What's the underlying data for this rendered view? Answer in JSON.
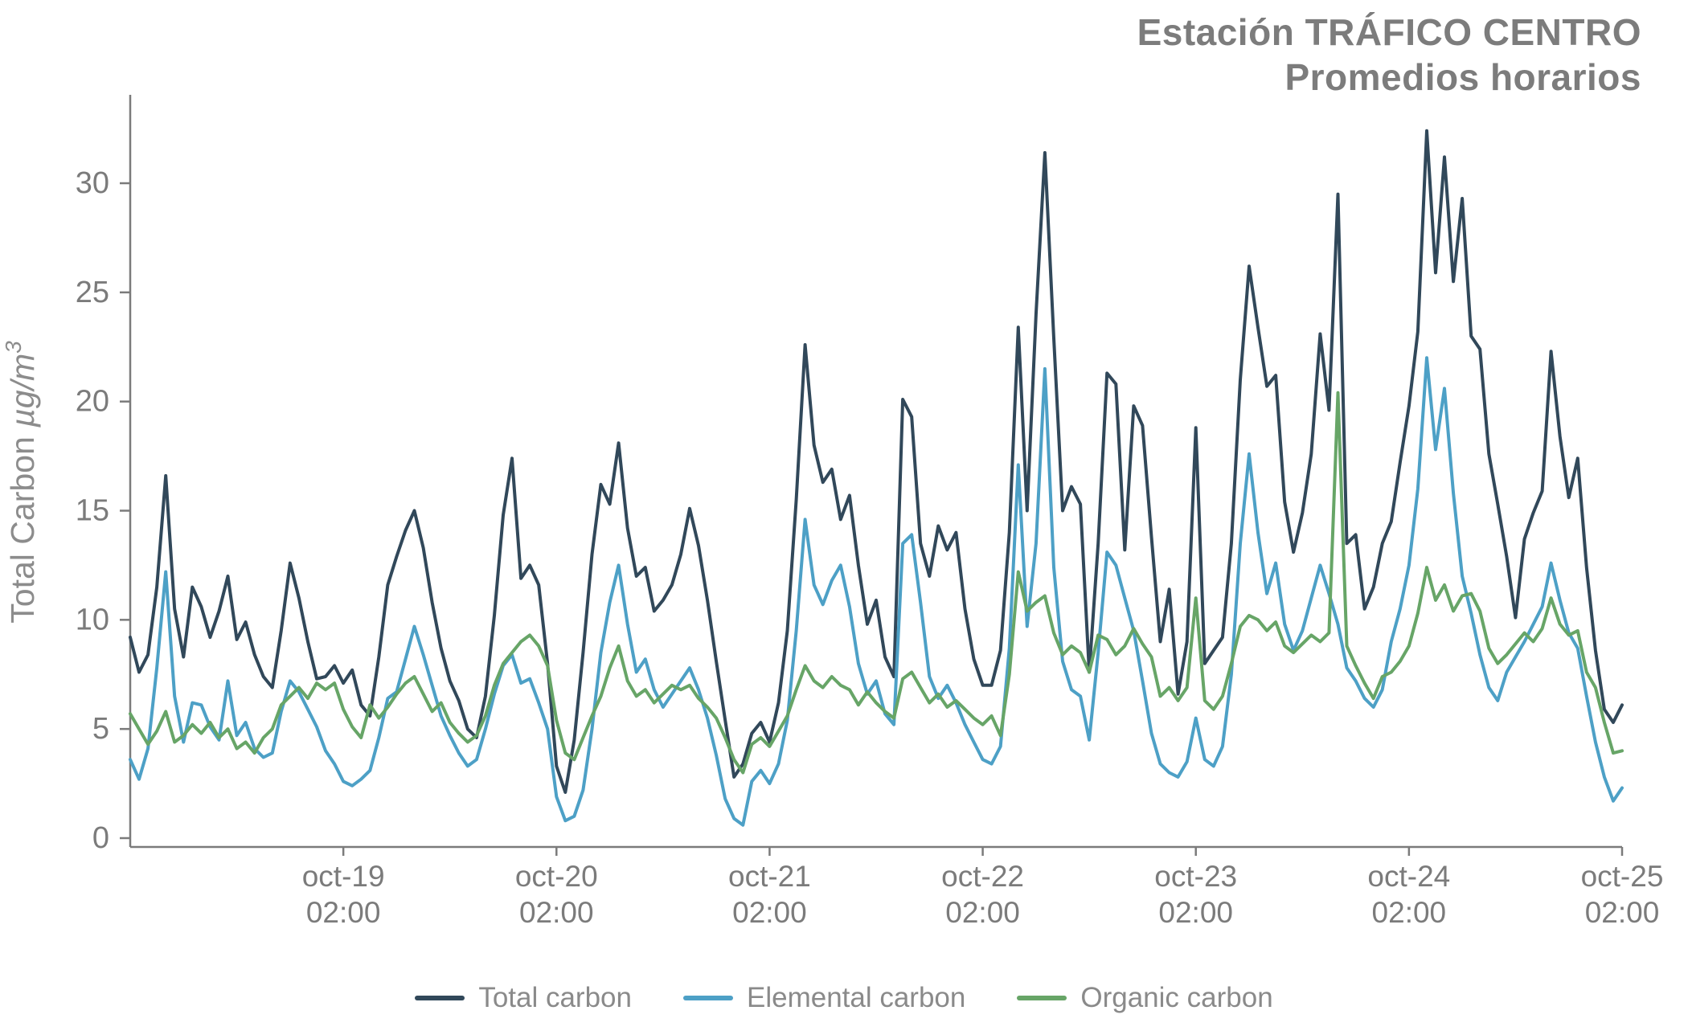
{
  "chart_data": {
    "type": "line",
    "title": "Estación TRÁFICO CENTRO",
    "subtitle": "Promedios horarios",
    "xlabel": "",
    "ylabel_regular": "Total Carbon ",
    "ylabel_italic": "µg/m",
    "ylabel_superscript": "3",
    "ylim": [
      0,
      34
    ],
    "yticks": [
      0,
      5,
      10,
      15,
      20,
      25,
      30
    ],
    "grid": false,
    "legend_position": "bottom-center",
    "axis_color": "#7b7b7b",
    "tick_label_color": "#7b7b7b",
    "title_color": "#7c7c7c",
    "x_tick_labels": [
      {
        "index": 24,
        "date": "oct-19",
        "time": "02:00"
      },
      {
        "index": 48,
        "date": "oct-20",
        "time": "02:00"
      },
      {
        "index": 72,
        "date": "oct-21",
        "time": "02:00"
      },
      {
        "index": 96,
        "date": "oct-22",
        "time": "02:00"
      },
      {
        "index": 120,
        "date": "oct-23",
        "time": "02:00"
      },
      {
        "index": 144,
        "date": "oct-24",
        "time": "02:00"
      },
      {
        "index": 168,
        "date": "oct-25",
        "time": "02:00"
      }
    ],
    "x": [
      "oct-18 02:00",
      "oct-18 03:00",
      "oct-18 04:00",
      "oct-18 05:00",
      "oct-18 06:00",
      "oct-18 07:00",
      "oct-18 08:00",
      "oct-18 09:00",
      "oct-18 10:00",
      "oct-18 11:00",
      "oct-18 12:00",
      "oct-18 13:00",
      "oct-18 14:00",
      "oct-18 15:00",
      "oct-18 16:00",
      "oct-18 17:00",
      "oct-18 18:00",
      "oct-18 19:00",
      "oct-18 20:00",
      "oct-18 21:00",
      "oct-18 22:00",
      "oct-18 23:00",
      "oct-19 00:00",
      "oct-19 01:00",
      "oct-19 02:00",
      "oct-19 03:00",
      "oct-19 04:00",
      "oct-19 05:00",
      "oct-19 06:00",
      "oct-19 07:00",
      "oct-19 08:00",
      "oct-19 09:00",
      "oct-19 10:00",
      "oct-19 11:00",
      "oct-19 12:00",
      "oct-19 13:00",
      "oct-19 14:00",
      "oct-19 15:00",
      "oct-19 16:00",
      "oct-19 17:00",
      "oct-19 18:00",
      "oct-19 19:00",
      "oct-19 20:00",
      "oct-19 21:00",
      "oct-19 22:00",
      "oct-19 23:00",
      "oct-20 00:00",
      "oct-20 01:00",
      "oct-20 02:00",
      "oct-20 03:00",
      "oct-20 04:00",
      "oct-20 05:00",
      "oct-20 06:00",
      "oct-20 07:00",
      "oct-20 08:00",
      "oct-20 09:00",
      "oct-20 10:00",
      "oct-20 11:00",
      "oct-20 12:00",
      "oct-20 13:00",
      "oct-20 14:00",
      "oct-20 15:00",
      "oct-20 16:00",
      "oct-20 17:00",
      "oct-20 18:00",
      "oct-20 19:00",
      "oct-20 20:00",
      "oct-20 21:00",
      "oct-20 22:00",
      "oct-20 23:00",
      "oct-21 00:00",
      "oct-21 01:00",
      "oct-21 02:00",
      "oct-21 03:00",
      "oct-21 04:00",
      "oct-21 05:00",
      "oct-21 06:00",
      "oct-21 07:00",
      "oct-21 08:00",
      "oct-21 09:00",
      "oct-21 10:00",
      "oct-21 11:00",
      "oct-21 12:00",
      "oct-21 13:00",
      "oct-21 14:00",
      "oct-21 15:00",
      "oct-21 16:00",
      "oct-21 17:00",
      "oct-21 18:00",
      "oct-21 19:00",
      "oct-21 20:00",
      "oct-21 21:00",
      "oct-21 22:00",
      "oct-21 23:00",
      "oct-22 00:00",
      "oct-22 01:00",
      "oct-22 02:00",
      "oct-22 03:00",
      "oct-22 04:00",
      "oct-22 05:00",
      "oct-22 06:00",
      "oct-22 07:00",
      "oct-22 08:00",
      "oct-22 09:00",
      "oct-22 10:00",
      "oct-22 11:00",
      "oct-22 12:00",
      "oct-22 13:00",
      "oct-22 14:00",
      "oct-22 15:00",
      "oct-22 16:00",
      "oct-22 17:00",
      "oct-22 18:00",
      "oct-22 19:00",
      "oct-22 20:00",
      "oct-22 21:00",
      "oct-22 22:00",
      "oct-22 23:00",
      "oct-23 00:00",
      "oct-23 01:00",
      "oct-23 02:00",
      "oct-23 03:00",
      "oct-23 04:00",
      "oct-23 05:00",
      "oct-23 06:00",
      "oct-23 07:00",
      "oct-23 08:00",
      "oct-23 09:00",
      "oct-23 10:00",
      "oct-23 11:00",
      "oct-23 12:00",
      "oct-23 13:00",
      "oct-23 14:00",
      "oct-23 15:00",
      "oct-23 16:00",
      "oct-23 17:00",
      "oct-23 18:00",
      "oct-23 19:00",
      "oct-23 20:00",
      "oct-23 21:00",
      "oct-23 22:00",
      "oct-23 23:00",
      "oct-24 00:00",
      "oct-24 01:00",
      "oct-24 02:00",
      "oct-24 03:00",
      "oct-24 04:00",
      "oct-24 05:00",
      "oct-24 06:00",
      "oct-24 07:00",
      "oct-24 08:00",
      "oct-24 09:00",
      "oct-24 10:00",
      "oct-24 11:00",
      "oct-24 12:00",
      "oct-24 13:00",
      "oct-24 14:00",
      "oct-24 15:00",
      "oct-24 16:00",
      "oct-24 17:00",
      "oct-24 18:00",
      "oct-24 19:00",
      "oct-24 20:00",
      "oct-24 21:00",
      "oct-24 22:00",
      "oct-24 23:00",
      "oct-25 00:00",
      "oct-25 01:00",
      "oct-25 02:00"
    ],
    "series": [
      {
        "name": "Total carbon",
        "color": "#31485a",
        "values": [
          9.2,
          7.6,
          8.4,
          11.5,
          16.6,
          10.5,
          8.3,
          11.5,
          10.6,
          9.2,
          10.4,
          12.0,
          9.1,
          9.9,
          8.4,
          7.4,
          6.9,
          9.5,
          12.6,
          11.0,
          9.0,
          7.3,
          7.4,
          7.9,
          7.1,
          7.7,
          6.1,
          5.6,
          8.3,
          11.6,
          12.9,
          14.1,
          15.0,
          13.3,
          10.8,
          8.7,
          7.2,
          6.3,
          5.0,
          4.6,
          6.5,
          10.2,
          14.8,
          17.4,
          11.9,
          12.5,
          11.6,
          8.0,
          3.3,
          2.1,
          4.5,
          8.5,
          13.0,
          16.2,
          15.3,
          18.1,
          14.2,
          12.0,
          12.4,
          10.4,
          10.9,
          11.6,
          13.0,
          15.1,
          13.4,
          10.9,
          8.1,
          5.4,
          2.8,
          3.4,
          4.8,
          5.3,
          4.4,
          6.2,
          9.5,
          15.5,
          22.6,
          18.0,
          16.3,
          16.9,
          14.6,
          15.7,
          12.5,
          9.8,
          10.9,
          8.3,
          7.4,
          20.1,
          19.3,
          13.5,
          12.0,
          14.3,
          13.2,
          14.0,
          10.5,
          8.2,
          7.0,
          7.0,
          8.6,
          14.0,
          23.4,
          15.0,
          24.0,
          31.4,
          22.9,
          15.0,
          16.1,
          15.3,
          7.6,
          13.5,
          21.3,
          20.8,
          13.2,
          19.8,
          18.9,
          13.8,
          9.0,
          11.4,
          6.6,
          9.0,
          18.8,
          8.0,
          8.6,
          9.2,
          13.5,
          21.0,
          26.2,
          23.4,
          20.7,
          21.2,
          15.4,
          13.1,
          14.9,
          17.6,
          23.1,
          19.6,
          29.5,
          13.5,
          13.9,
          10.5,
          11.5,
          13.5,
          14.5,
          17.2,
          19.8,
          23.2,
          32.4,
          25.9,
          31.2,
          25.5,
          29.3,
          23.0,
          22.4,
          17.6,
          15.3,
          12.9,
          10.1,
          13.7,
          14.9,
          15.9,
          22.3,
          18.4,
          15.6,
          17.4,
          12.4,
          8.6,
          5.9,
          5.3,
          6.1
        ]
      },
      {
        "name": "Elemental carbon",
        "color": "#4da0c6",
        "values": [
          3.6,
          2.7,
          4.1,
          7.8,
          12.2,
          6.5,
          4.4,
          6.2,
          6.1,
          5.1,
          4.5,
          7.2,
          4.7,
          5.3,
          4.1,
          3.7,
          3.9,
          5.8,
          7.2,
          6.7,
          5.9,
          5.1,
          4.0,
          3.4,
          2.6,
          2.4,
          2.7,
          3.1,
          4.6,
          6.4,
          6.7,
          8.2,
          9.7,
          8.4,
          7.0,
          5.6,
          4.7,
          3.9,
          3.3,
          3.6,
          5.0,
          6.6,
          7.9,
          8.4,
          7.1,
          7.3,
          6.2,
          5.0,
          1.9,
          0.8,
          1.0,
          2.2,
          5.0,
          8.5,
          10.8,
          12.5,
          9.8,
          7.6,
          8.2,
          6.8,
          6.0,
          6.6,
          7.2,
          7.8,
          6.8,
          5.5,
          3.8,
          1.8,
          0.9,
          0.6,
          2.6,
          3.1,
          2.5,
          3.4,
          5.4,
          9.5,
          14.6,
          11.6,
          10.7,
          11.8,
          12.5,
          10.6,
          8.0,
          6.6,
          7.2,
          5.7,
          5.2,
          13.5,
          13.9,
          10.8,
          7.4,
          6.4,
          7.0,
          6.2,
          5.2,
          4.4,
          3.6,
          3.4,
          4.2,
          8.7,
          17.1,
          9.7,
          13.5,
          21.5,
          12.4,
          8.1,
          6.8,
          6.5,
          4.5,
          8.5,
          13.1,
          12.5,
          11.0,
          9.5,
          7.2,
          4.8,
          3.4,
          3.0,
          2.8,
          3.5,
          5.5,
          3.6,
          3.3,
          4.2,
          7.5,
          13.5,
          17.6,
          14.0,
          11.2,
          12.6,
          9.8,
          8.6,
          9.5,
          11.0,
          12.5,
          11.2,
          9.8,
          7.8,
          7.2,
          6.4,
          6.0,
          6.8,
          9.0,
          10.5,
          12.5,
          16.0,
          22.0,
          17.8,
          20.6,
          15.8,
          12.0,
          10.3,
          8.4,
          6.9,
          6.3,
          7.6,
          8.3,
          9.0,
          9.8,
          10.6,
          12.6,
          10.9,
          9.4,
          8.7,
          6.5,
          4.4,
          2.8,
          1.7,
          2.3
        ]
      },
      {
        "name": "Organic carbon",
        "color": "#67a567",
        "values": [
          5.7,
          5.0,
          4.3,
          4.9,
          5.8,
          4.4,
          4.7,
          5.2,
          4.8,
          5.3,
          4.6,
          5.0,
          4.1,
          4.4,
          3.9,
          4.6,
          5.0,
          6.1,
          6.5,
          6.9,
          6.4,
          7.1,
          6.8,
          7.1,
          5.9,
          5.1,
          4.6,
          6.1,
          5.5,
          6.0,
          6.6,
          7.1,
          7.4,
          6.6,
          5.8,
          6.2,
          5.3,
          4.8,
          4.4,
          4.7,
          5.6,
          7.0,
          8.0,
          8.5,
          9.0,
          9.3,
          8.8,
          7.9,
          5.4,
          3.9,
          3.6,
          4.6,
          5.6,
          6.5,
          7.8,
          8.8,
          7.2,
          6.5,
          6.8,
          6.2,
          6.6,
          7.0,
          6.8,
          7.0,
          6.4,
          6.0,
          5.5,
          4.6,
          3.6,
          3.0,
          4.3,
          4.6,
          4.2,
          4.9,
          5.6,
          6.8,
          7.9,
          7.2,
          6.9,
          7.4,
          7.0,
          6.8,
          6.1,
          6.7,
          6.2,
          5.8,
          5.5,
          7.3,
          7.6,
          6.9,
          6.2,
          6.6,
          6.0,
          6.3,
          5.9,
          5.5,
          5.2,
          5.6,
          4.7,
          7.5,
          12.2,
          10.4,
          10.8,
          11.1,
          9.4,
          8.4,
          8.8,
          8.5,
          7.6,
          9.3,
          9.1,
          8.4,
          8.8,
          9.6,
          8.9,
          8.3,
          6.5,
          6.9,
          6.3,
          6.9,
          11.0,
          6.3,
          5.9,
          6.5,
          8.0,
          9.7,
          10.2,
          10.0,
          9.5,
          9.9,
          8.8,
          8.5,
          8.9,
          9.3,
          9.0,
          9.4,
          20.4,
          8.8,
          7.9,
          7.1,
          6.4,
          7.4,
          7.6,
          8.1,
          8.8,
          10.3,
          12.4,
          10.9,
          11.6,
          10.4,
          11.1,
          11.2,
          10.4,
          8.7,
          8.0,
          8.4,
          8.9,
          9.4,
          9.0,
          9.6,
          11.0,
          9.8,
          9.3,
          9.5,
          7.6,
          6.9,
          5.3,
          3.9,
          4.0
        ]
      }
    ]
  }
}
